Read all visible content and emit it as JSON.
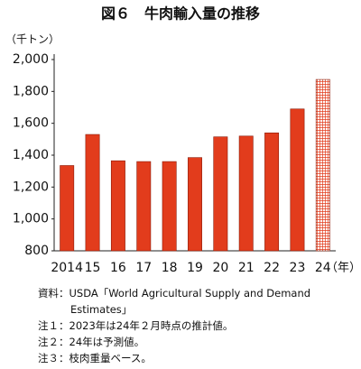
{
  "chart_data": {
    "type": "bar",
    "title": "図６　牛肉輸入量の推移",
    "y_unit": "（千トン）",
    "x_unit": "（年）",
    "categories": [
      "2014",
      "15",
      "16",
      "17",
      "18",
      "19",
      "20",
      "21",
      "22",
      "23",
      "24"
    ],
    "values": [
      1335,
      1530,
      1365,
      1360,
      1360,
      1385,
      1515,
      1520,
      1540,
      1690,
      1875
    ],
    "hatched": [
      false,
      false,
      false,
      false,
      false,
      false,
      false,
      false,
      false,
      false,
      true
    ],
    "color": "#e23c1c",
    "edge_color": "#8a1a08",
    "ylim": [
      800,
      2000
    ],
    "yticks": [
      800,
      {
        "value": 1000,
        "label": "1,000"
      },
      {
        "value": 1200,
        "label": "1,200"
      },
      {
        "value": 1400,
        "label": "1,400"
      },
      {
        "value": 1600,
        "label": "1,600"
      },
      {
        "value": 1800,
        "label": "1,800"
      },
      {
        "value": 2000,
        "label": "2,000"
      }
    ],
    "grid": false,
    "notes": [
      "資料：USDA「World Agricultural Supply and Demand Estimates」",
      "注１：2023年は24年２月時点の推計値。",
      "注２：24年は予測値。",
      "注３：枝肉重量ベース。"
    ]
  }
}
